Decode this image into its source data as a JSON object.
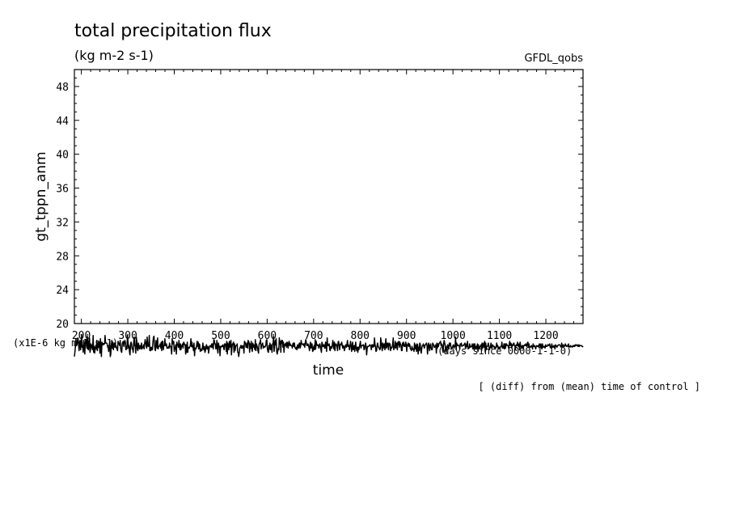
{
  "chart_data": {
    "type": "line",
    "title": "total precipitation flux",
    "subtitle": "(kg m-2 s-1)",
    "source_label": "GFDL_qobs",
    "ylabel": "gt_tppn_anm",
    "yunits": "(x1E-6 kg m-2 s-1)",
    "xlabel": "time",
    "xunits": "(days since 0000-1-1-0)",
    "note": "[ (diff) from (mean) time of control ]",
    "xlim": [
      185,
      1280
    ],
    "ylim": [
      20,
      50
    ],
    "x_ticks": [
      200,
      300,
      400,
      500,
      600,
      700,
      800,
      900,
      1000,
      1100,
      1200
    ],
    "y_ticks": [
      20,
      24,
      28,
      32,
      36,
      40,
      44,
      48
    ],
    "grid": false,
    "series": [
      {
        "x_start": 185,
        "x_end": 1280,
        "values": [
          16.1,
          16.6,
          17.3,
          18.2,
          17.4,
          17.5,
          18.1,
          18.3,
          17.6,
          16.8,
          17.8,
          18.0,
          16.9,
          17.7,
          18.7,
          17.2,
          17.4,
          16.6,
          18.0,
          17.5,
          16.4,
          17.8,
          18.1,
          17.8,
          17.1,
          18.5,
          17.0,
          16.9,
          18.0,
          18.3,
          16.6,
          16.9,
          17.6,
          17.4,
          17.1,
          16.9,
          18.6,
          16.6,
          17.3,
          16.5,
          17.0,
          17.4,
          17.0,
          18.0,
          16.8,
          17.2,
          17.8,
          17.2,
          17.8,
          16.5,
          18.2,
          17.1,
          16.1,
          17.8,
          17.5,
          17.5,
          17.5,
          17.6,
          17.6,
          18.6,
          17.7,
          17.7,
          17.7,
          17.6,
          17.2,
          17.2,
          16.7,
          17.4,
          18.0,
          16.1,
          16.4,
          17.4,
          18.0,
          17.1,
          17.8,
          16.9,
          17.4,
          17.7,
          17.7,
          17.2,
          17.4,
          17.1,
          17.0,
          16.8,
          17.9,
          17.7,
          17.6,
          17.4,
          18.0,
          17.1,
          16.7,
          16.6,
          17.6,
          17.8,
          17.9,
          17.3,
          17.8,
          18.0,
          17.8,
          16.9,
          17.3,
          17.0,
          18.6,
          18.0,
          17.1,
          17.4,
          16.6,
          16.3,
          17.6,
          17.8,
          17.6,
          17.0,
          17.1,
          16.6,
          17.7,
          18.4,
          17.4,
          17.4,
          16.5,
          18.4,
          17.9,
          17.0,
          16.8,
          17.7,
          17.4,
          17.0,
          17.3,
          17.4,
          17.0,
          17.7,
          17.0,
          17.2,
          17.2,
          17.5,
          17.0,
          17.6,
          18.1,
          17.8,
          17.3,
          17.1,
          18.4,
          17.4,
          17.3,
          17.4,
          18.6,
          16.8,
          17.2,
          16.8,
          17.2,
          16.9,
          16.9,
          17.8,
          18.4,
          18.5,
          17.6,
          16.9,
          16.8,
          18.0,
          17.7,
          17.1,
          18.3,
          17.0,
          17.3,
          17.3,
          17.4,
          17.6,
          17.1,
          17.8,
          16.8,
          17.9,
          17.9,
          16.9,
          17.4,
          17.4,
          18.2,
          17.4,
          17.4,
          17.6,
          17.1,
          17.1,
          17.1,
          17.3,
          17.1,
          17.7,
          17.3,
          17.3,
          17.1,
          16.4,
          18.2,
          17.7,
          17.6,
          17.9,
          16.7,
          17.0,
          17.2,
          17.5,
          16.4,
          17.8,
          17.5,
          17.5,
          17.2,
          18.0,
          17.3,
          16.9,
          17.6,
          16.9,
          17.4,
          17.3,
          17.6,
          17.1,
          17.8,
          17.7,
          17.5,
          17.5,
          16.4,
          17.5,
          16.6,
          17.8,
          16.6,
          17.2,
          17.1,
          17.1,
          17.3,
          17.4,
          18.2,
          17.3,
          17.8,
          17.2,
          17.4,
          16.8,
          17.7,
          16.2,
          17.1,
          17.1,
          17.0,
          17.4,
          17.9,
          17.3,
          17.8,
          17.0,
          17.6,
          17.5,
          16.7,
          16.8,
          17.0,
          16.8,
          17.1,
          17.7,
          17.0,
          16.9,
          17.3,
          16.6,
          16.8,
          17.3,
          17.5,
          17.0,
          17.0,
          17.3,
          16.5,
          17.0,
          17.3,
          17.4,
          17.3,
          17.2,
          17.6,
          17.2,
          17.6,
          17.0,
          18.1,
          18.0,
          17.6,
          17.6,
          17.0,
          17.1,
          18.0,
          17.0,
          16.5,
          17.7,
          17.3,
          17.3,
          16.2,
          17.3,
          17.2,
          17.3,
          17.4,
          17.3,
          17.5,
          17.1,
          16.9,
          17.6,
          17.6,
          17.5,
          16.7,
          17.9,
          16.4,
          17.7,
          17.2,
          16.9,
          17.9,
          17.2,
          17.5,
          18.0,
          16.3,
          17.2,
          17.6,
          17.6,
          17.8,
          16.6,
          17.6,
          16.8,
          17.3,
          17.4,
          17.4,
          17.6,
          16.6,
          16.6,
          16.1,
          16.6,
          17.1,
          17.2,
          17.4,
          17.1,
          17.4,
          17.1,
          17.1,
          17.4,
          16.5,
          17.9,
          17.8,
          17.7,
          17.2,
          17.2,
          17.7,
          17.1,
          18.0,
          17.9,
          17.7,
          16.6,
          17.6,
          17.1,
          17.9,
          17.0,
          16.7,
          17.7,
          17.2,
          17.5,
          17.3,
          16.9,
          18.1,
          16.8,
          17.6,
          17.4,
          17.2,
          16.8,
          16.5,
          17.5,
          17.7,
          17.8,
          18.1,
          17.0,
          17.5,
          17.5,
          17.7,
          17.1,
          17.3,
          17.3,
          17.2,
          17.3,
          17.4,
          18.0,
          18.1,
          17.1,
          16.7,
          16.6,
          17.4,
          17.0,
          17.7,
          16.9,
          17.5,
          17.3,
          16.6,
          17.6,
          17.6,
          18.5,
          16.7,
          17.3,
          18.0,
          17.5,
          18.2,
          16.7,
          16.4,
          16.7,
          17.1,
          16.9,
          18.3,
          17.6,
          17.9,
          16.6,
          18.0,
          17.7,
          18.0,
          17.2,
          17.8,
          16.6,
          17.4,
          17.6,
          17.4,
          17.7,
          17.2,
          17.8,
          17.7,
          17.1,
          17.7,
          17.9,
          17.4,
          17.6,
          17.4,
          17.4,
          17.4,
          17.1,
          17.6,
          17.7,
          17.3,
          17.7,
          17.2,
          17.1,
          17.0,
          17.2,
          16.9,
          17.5,
          17.2,
          17.1,
          17.6,
          17.7,
          17.1,
          17.3,
          18.0,
          17.6,
          17.6,
          17.5,
          17.6,
          17.4,
          17.6,
          17.2,
          17.8,
          18.1,
          17.7,
          17.4,
          17.4,
          17.6,
          17.4,
          17.2,
          16.8,
          17.5,
          17.8,
          17.1,
          17.6,
          17.6,
          16.7,
          16.8,
          17.2,
          17.4,
          16.9,
          18.1,
          17.0,
          17.9,
          17.5,
          17.4,
          17.5,
          17.4,
          17.1,
          17.5,
          17.6,
          17.3,
          16.9,
          16.6,
          17.8,
          17.6,
          17.3,
          17.4,
          17.5,
          17.1,
          17.1,
          17.8,
          17.6,
          16.7,
          18.3,
          17.4,
          17.5,
          17.4,
          17.6,
          16.9,
          16.8,
          17.3,
          17.1,
          17.1,
          17.5,
          18.0,
          17.4,
          17.0,
          17.8,
          16.8,
          17.5,
          17.6,
          17.5,
          17.3,
          16.8,
          17.8,
          17.9,
          17.5,
          16.9,
          17.4,
          17.6,
          17.5,
          17.8,
          17.4,
          17.1,
          17.4,
          17.3,
          16.8,
          17.0,
          17.4,
          17.5,
          17.2,
          17.5,
          18.0,
          17.3,
          17.5,
          17.3,
          16.9,
          17.4,
          17.9,
          17.4,
          16.7,
          17.3,
          17.8,
          16.9,
          17.0,
          17.4,
          16.7,
          17.4,
          17.8,
          17.0,
          16.8,
          17.2,
          16.6,
          17.2,
          16.9,
          17.2,
          17.6,
          17.9,
          17.1,
          17.4,
          17.4,
          17.4,
          17.5,
          17.5,
          16.9,
          17.0,
          17.4,
          17.7,
          17.3,
          16.3,
          17.1,
          17.3,
          17.3,
          17.3,
          17.4,
          17.5,
          17.4,
          17.4,
          16.9,
          17.5,
          17.5,
          17.2,
          17.5,
          17.3,
          18.3,
          17.6,
          17.2,
          16.7,
          16.8,
          17.4,
          17.7,
          17.3,
          17.2,
          17.1,
          16.9,
          17.0,
          18.3,
          17.8,
          17.2,
          16.8,
          17.7,
          17.1,
          17.5,
          17.6,
          16.9,
          17.7,
          18.2,
          17.1,
          17.3,
          17.7,
          17.5,
          16.9,
          17.7,
          17.4,
          17.6,
          16.8,
          17.2,
          17.1,
          17.2,
          17.6,
          18.3,
          16.9,
          17.1,
          17.2,
          17.9,
          17.1,
          17.7,
          17.6,
          16.9,
          17.8,
          17.5,
          17.9,
          17.2,
          17.8,
          17.5,
          17.5,
          16.8,
          16.8,
          17.7,
          17.4,
          17.8,
          17.3,
          17.5,
          17.3,
          17.8,
          17.6,
          16.7,
          17.5,
          17.4,
          17.7,
          17.3,
          17.6,
          17.5,
          17.0,
          17.0,
          16.8,
          17.3,
          17.1,
          16.9,
          17.0,
          16.7,
          17.7,
          17.0,
          17.5,
          17.2,
          16.7,
          17.6,
          17.5,
          16.4,
          17.2,
          16.8,
          17.7,
          17.6,
          16.8,
          16.5,
          17.1,
          17.4,
          17.4,
          17.6,
          17.3,
          17.1,
          17.4,
          17.5,
          17.6,
          17.7,
          17.4,
          16.4,
          17.1,
          17.7,
          17.4,
          16.8,
          17.4,
          17.6,
          17.1,
          16.9,
          16.9,
          17.7,
          17.5,
          17.5,
          17.2,
          17.2,
          17.3,
          17.5,
          16.5,
          17.7,
          17.1,
          17.6,
          17.3,
          17.6,
          17.7,
          17.8,
          17.9,
          17.4,
          17.6,
          17.5,
          16.9,
          16.6,
          17.6,
          18.0,
          17.7,
          17.4,
          16.7,
          16.6,
          17.3,
          17.2,
          17.5,
          17.1,
          17.0,
          17.7,
          17.4,
          17.7,
          17.3,
          17.0,
          17.1,
          17.2,
          17.4,
          17.5,
          17.1,
          17.3,
          17.3,
          18.4,
          16.9,
          17.7,
          17.4,
          17.5,
          17.4,
          17.4,
          17.4,
          17.0,
          17.6,
          17.5,
          17.7,
          17.3,
          17.4,
          17.4,
          17.4,
          17.5,
          17.6,
          17.7,
          17.1,
          17.1,
          17.6,
          17.3,
          17.9,
          17.0,
          17.2,
          17.1,
          17.6,
          17.3,
          17.2,
          17.3,
          17.3,
          17.6,
          17.0,
          17.1,
          17.6,
          16.9,
          17.6,
          17.2,
          17.1,
          17.3,
          17.1,
          17.6,
          16.7,
          17.5,
          17.0,
          17.1,
          17.3,
          17.4,
          17.5,
          16.8,
          17.7,
          17.1,
          17.5,
          17.7,
          17.2,
          17.9,
          16.6,
          17.7,
          16.9,
          17.3,
          17.3,
          17.4,
          17.7,
          17.3,
          16.9,
          17.1,
          17.3,
          17.7,
          17.1,
          17.1,
          17.5,
          17.4,
          17.3,
          17.2,
          17.3,
          17.0,
          17.1,
          17.2,
          17.7,
          17.3,
          17.4,
          17.0,
          17.2,
          17.2,
          17.0,
          17.2,
          17.3,
          17.3,
          17.8,
          17.1,
          17.3,
          17.1,
          17.6,
          17.0,
          17.6,
          17.1,
          17.6,
          17.6,
          17.4,
          17.4,
          17.4,
          17.1,
          17.5,
          17.9,
          17.4,
          17.7,
          17.6,
          17.1,
          17.5,
          17.4,
          17.6,
          17.7,
          17.4,
          17.4,
          16.9,
          17.4,
          17.5,
          17.4,
          17.8,
          17.4,
          17.3,
          17.6,
          16.9,
          17.8,
          17.4,
          17.2,
          17.1,
          17.4,
          17.4,
          17.0,
          17.4,
          17.4,
          17.5,
          17.4,
          17.6,
          17.4,
          17.3,
          17.7,
          17.8,
          17.2,
          17.6,
          17.3,
          17.2,
          17.2,
          17.3,
          17.4,
          17.2,
          17.0,
          17.6,
          17.3,
          17.3,
          17.4,
          17.2,
          17.0,
          17.3,
          17.4,
          17.3,
          17.3,
          17.4,
          17.3,
          17.6,
          17.5,
          17.2,
          17.6,
          17.2,
          17.0,
          17.6,
          17.2,
          17.2,
          17.3,
          17.3,
          17.1,
          17.5,
          17.3,
          17.3,
          17.3,
          17.5,
          17.5,
          17.4,
          17.5,
          17.6,
          17.2,
          17.3,
          17.1,
          17.6,
          17.2,
          17.3,
          17.2,
          17.4,
          17.3,
          17.0,
          17.5,
          17.4,
          17.3,
          17.2,
          17.4,
          17.4,
          17.5,
          17.5,
          17.5,
          17.4,
          17.3,
          17.2,
          17.7,
          17.3,
          17.3,
          17.5,
          17.3,
          17.3,
          17.4,
          17.6,
          17.4,
          17.3,
          17.4,
          17.4,
          17.3,
          17.6,
          17.3,
          17.3,
          17.2,
          17.4,
          17.3,
          17.3,
          17.2,
          17.3,
          17.4,
          17.3,
          17.4,
          17.3,
          17.5,
          17.4,
          17.4,
          17.5,
          17.5,
          17.3,
          17.3,
          17.5,
          17.3,
          17.4,
          17.4,
          17.4,
          17.4,
          17.3,
          17.3,
          17.2
        ]
      }
    ]
  }
}
